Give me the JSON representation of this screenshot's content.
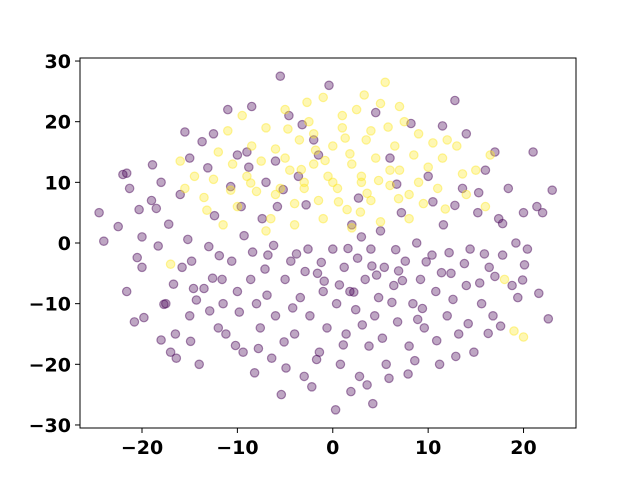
{
  "chart_data": {
    "type": "scatter",
    "title": "",
    "xlabel": "",
    "ylabel": "",
    "xlim": [
      -26.5,
      25.5
    ],
    "ylim": [
      -30.5,
      30.5
    ],
    "xticks": [
      "−20",
      "−10",
      "0",
      "10",
      "20"
    ],
    "xtick_values": [
      -20,
      -10,
      0,
      10,
      20
    ],
    "yticks": [
      "30",
      "20",
      "10",
      "0",
      "−10",
      "−20",
      "−30"
    ],
    "ytick_values": [
      30,
      20,
      10,
      0,
      -10,
      -20,
      -30
    ],
    "grid": false,
    "legend": "none",
    "marker_alpha": 0.35,
    "series": [
      {
        "color": "#440154",
        "points": [
          [
            -24.5,
            5
          ],
          [
            -24,
            0.3
          ],
          [
            -22,
            11.3
          ],
          [
            -21.6,
            11.5
          ],
          [
            -21.6,
            -8
          ],
          [
            -21.3,
            9
          ],
          [
            -20.8,
            -13
          ],
          [
            -20.3,
            5.5
          ],
          [
            -20,
            1
          ],
          [
            -20,
            -4
          ],
          [
            -19,
            7
          ],
          [
            -18.9,
            12.9
          ],
          [
            -18.5,
            5.7
          ],
          [
            -18,
            10
          ],
          [
            -18,
            -16
          ],
          [
            -17.5,
            -10
          ],
          [
            -17,
            -18
          ],
          [
            -16.5,
            -15
          ],
          [
            -16.4,
            -19
          ],
          [
            -16,
            8
          ],
          [
            -15.8,
            -4
          ],
          [
            -15.5,
            18.3
          ],
          [
            -15,
            -12
          ],
          [
            -14.8,
            -3
          ],
          [
            -14.6,
            -7.5
          ],
          [
            -14,
            -20
          ],
          [
            -13.7,
            16.7
          ],
          [
            -13.5,
            -7.5
          ],
          [
            -13,
            -0.6
          ],
          [
            -12.6,
            -5.8
          ],
          [
            -12.4,
            4.5
          ],
          [
            -12,
            -14
          ],
          [
            -11.6,
            -6
          ],
          [
            -11.5,
            -10
          ],
          [
            -11.2,
            -15
          ],
          [
            -11,
            22
          ],
          [
            -10.6,
            -3
          ],
          [
            -10,
            -8
          ],
          [
            -9.6,
            6
          ],
          [
            -9.4,
            -18
          ],
          [
            -9,
            15
          ],
          [
            -8.6,
            -6
          ],
          [
            -8.4,
            -1.5
          ],
          [
            -8,
            -10
          ],
          [
            -7.6,
            -14
          ],
          [
            -7.4,
            4
          ],
          [
            -7,
            10
          ],
          [
            -6.8,
            -2
          ],
          [
            -6.4,
            -19
          ],
          [
            -6,
            -12
          ],
          [
            -5.8,
            6
          ],
          [
            -5.5,
            27.5
          ],
          [
            -5.4,
            -25
          ],
          [
            -5,
            -6
          ],
          [
            -4.6,
            21
          ],
          [
            -4.4,
            -3
          ],
          [
            -4,
            -15
          ],
          [
            -3.6,
            11
          ],
          [
            -3.4,
            -9
          ],
          [
            -3,
            -22
          ],
          [
            -2.6,
            -1
          ],
          [
            -2.4,
            -12
          ],
          [
            -2,
            17
          ],
          [
            -1.6,
            -5
          ],
          [
            -1.4,
            -18
          ],
          [
            -1,
            -8
          ],
          [
            -0.6,
            -14
          ],
          [
            -0.4,
            26
          ],
          [
            0,
            -1
          ],
          [
            0.3,
            -27.5
          ],
          [
            0.4,
            -10
          ],
          [
            0.8,
            -20
          ],
          [
            1.2,
            -4
          ],
          [
            1.4,
            -15
          ],
          [
            1.8,
            -8
          ],
          [
            2,
            3
          ],
          [
            2.4,
            -11
          ],
          [
            2.8,
            -22
          ],
          [
            3,
            1
          ],
          [
            3.4,
            -6
          ],
          [
            3.8,
            -17
          ],
          [
            4,
            -1
          ],
          [
            4.2,
            -26.5
          ],
          [
            4.4,
            -12
          ],
          [
            4.8,
            -9
          ],
          [
            5,
            2
          ],
          [
            5.4,
            -4
          ],
          [
            5.6,
            -20
          ],
          [
            6,
            14
          ],
          [
            6.4,
            -7
          ],
          [
            6.8,
            -13
          ],
          [
            7.2,
            5
          ],
          [
            7.6,
            -3
          ],
          [
            8,
            -17
          ],
          [
            8.4,
            -10
          ],
          [
            8.8,
            0
          ],
          [
            9.2,
            -6
          ],
          [
            9.6,
            -14
          ],
          [
            10,
            11
          ],
          [
            10.4,
            -2
          ],
          [
            10.8,
            -8
          ],
          [
            11.2,
            -20
          ],
          [
            11.6,
            3
          ],
          [
            12,
            -12
          ],
          [
            12.4,
            -5
          ],
          [
            12.8,
            23.5
          ],
          [
            13.2,
            -15
          ],
          [
            13.6,
            9
          ],
          [
            14,
            -7
          ],
          [
            14.4,
            -1
          ],
          [
            14.8,
            -18
          ],
          [
            15.2,
            5
          ],
          [
            15.6,
            -10
          ],
          [
            16,
            12
          ],
          [
            16.4,
            -4
          ],
          [
            16.8,
            -12
          ],
          [
            17,
            -5.5
          ],
          [
            17.4,
            4
          ],
          [
            17.8,
            -2
          ],
          [
            18.4,
            9
          ],
          [
            18.8,
            -7
          ],
          [
            19.2,
            0
          ],
          [
            19.4,
            -9
          ],
          [
            20,
            5
          ],
          [
            20.4,
            -1
          ],
          [
            21,
            15
          ],
          [
            21.4,
            6
          ],
          [
            22,
            5
          ],
          [
            22.6,
            -12.5
          ],
          [
            23,
            8.7
          ],
          [
            -22.5,
            2.7
          ],
          [
            -19.8,
            -12.3
          ],
          [
            -17.2,
            3.1
          ],
          [
            -14.9,
            -16.2
          ],
          [
            -13.1,
            12.4
          ],
          [
            -10.7,
            9.3
          ],
          [
            -8.2,
            -21.4
          ],
          [
            -6.9,
            -8.6
          ],
          [
            -5.1,
            -16.3
          ],
          [
            -3.8,
            -1.8
          ],
          [
            -2.2,
            -23.7
          ],
          [
            -0.9,
            -6.3
          ],
          [
            1.1,
            -16.8
          ],
          [
            2.6,
            -2.5
          ],
          [
            3.6,
            -23.4
          ],
          [
            5.2,
            -15.7
          ],
          [
            6.6,
            -1.1
          ],
          [
            7.9,
            -21.6
          ],
          [
            9.4,
            -10.8
          ],
          [
            10.9,
            -16.1
          ],
          [
            12.6,
            -9.3
          ],
          [
            14.2,
            -13.3
          ],
          [
            15.9,
            -1.8
          ],
          [
            17.6,
            -13.7
          ],
          [
            19.9,
            -6.1
          ],
          [
            -18.3,
            -0.5
          ],
          [
            -16.7,
            -6.8
          ],
          [
            -12.9,
            -11.2
          ],
          [
            -9.8,
            -11.4
          ],
          [
            -7.1,
            -4.3
          ],
          [
            -4.2,
            -10.7
          ],
          [
            -1.2,
            -3.2
          ],
          [
            0.7,
            -6.9
          ],
          [
            2.2,
            -8.1
          ],
          [
            3.1,
            -13.5
          ],
          [
            4.6,
            -5.3
          ],
          [
            6.2,
            -9.8
          ],
          [
            7.3,
            -6.2
          ],
          [
            8.9,
            -12.6
          ],
          [
            11.4,
            -4.9
          ],
          [
            13.8,
            -3.4
          ],
          [
            15.4,
            -6.6
          ],
          [
            -20.5,
            -2.4
          ],
          [
            -15.2,
            0.6
          ],
          [
            -11.9,
            -2.1
          ],
          [
            -9.3,
            1.2
          ],
          [
            -6.2,
            -0.4
          ],
          [
            -2.9,
            -4.7
          ],
          [
            1.6,
            -0.9
          ],
          [
            4.1,
            -3.8
          ],
          [
            6.9,
            -4.6
          ],
          [
            9.8,
            -3.1
          ],
          [
            12.2,
            -1.6
          ],
          [
            -17.7,
            -10.1
          ],
          [
            -14.3,
            -9.4
          ],
          [
            -10.2,
            -16.9
          ],
          [
            -7.8,
            -17.4
          ],
          [
            -4.9,
            -20.6
          ],
          [
            -1.7,
            -19.2
          ],
          [
            1.9,
            -24.5
          ],
          [
            5.9,
            -22.3
          ],
          [
            8.6,
            -19.4
          ],
          [
            12.9,
            -18.7
          ],
          [
            16.3,
            -14.9
          ],
          [
            -8.5,
            22.5
          ],
          [
            -3.2,
            19.5
          ],
          [
            4.5,
            21.5
          ],
          [
            8.2,
            19.7
          ],
          [
            11.5,
            19.3
          ],
          [
            14,
            18
          ],
          [
            17,
            15
          ],
          [
            -12.5,
            18
          ],
          [
            -15,
            14
          ],
          [
            -10,
            14.5
          ],
          [
            -6,
            13.5
          ],
          [
            -1.5,
            14.5
          ],
          [
            -8.8,
            12.5
          ],
          [
            -5.2,
            8.8
          ],
          [
            -2.8,
            6.3
          ],
          [
            2.7,
            7.4
          ],
          [
            6.7,
            9.7
          ],
          [
            10.5,
            6.8
          ],
          [
            12.8,
            6.2
          ],
          [
            15.3,
            8.3
          ],
          [
            17.8,
            3.2
          ],
          [
            20.1,
            -3.6
          ],
          [
            21.6,
            -8.3
          ]
        ]
      },
      {
        "color": "#fde725",
        "points": [
          [
            -17,
            -3.5
          ],
          [
            -16,
            13.5
          ],
          [
            -15.5,
            9
          ],
          [
            -14.5,
            11
          ],
          [
            -13.5,
            7.5
          ],
          [
            -12.5,
            10.5
          ],
          [
            -12,
            15
          ],
          [
            -11.5,
            3
          ],
          [
            -11,
            18.5
          ],
          [
            -10.5,
            13
          ],
          [
            -10,
            6
          ],
          [
            -9.5,
            21
          ],
          [
            -9,
            11
          ],
          [
            -8.5,
            16
          ],
          [
            -8,
            8.5
          ],
          [
            -7.5,
            13.5
          ],
          [
            -7,
            19
          ],
          [
            -6.5,
            4
          ],
          [
            -6,
            15.5
          ],
          [
            -5.5,
            9
          ],
          [
            -5,
            22
          ],
          [
            -4.5,
            12
          ],
          [
            -4,
            6.5
          ],
          [
            -3.5,
            17
          ],
          [
            -3,
            10
          ],
          [
            -2.5,
            20
          ],
          [
            -2,
            13
          ],
          [
            -1.5,
            7
          ],
          [
            -1,
            24
          ],
          [
            -0.5,
            11
          ],
          [
            0,
            16
          ],
          [
            0.5,
            9
          ],
          [
            1,
            19
          ],
          [
            1.5,
            5.5
          ],
          [
            2,
            13
          ],
          [
            2.5,
            22
          ],
          [
            3,
            10
          ],
          [
            3.5,
            17
          ],
          [
            4,
            7
          ],
          [
            4.5,
            14
          ],
          [
            5,
            23
          ],
          [
            5.5,
            26.5
          ],
          [
            6,
            9.5
          ],
          [
            6.5,
            16
          ],
          [
            7,
            12
          ],
          [
            7.5,
            20
          ],
          [
            8,
            8
          ],
          [
            8.5,
            14.5
          ],
          [
            9,
            18
          ],
          [
            9.5,
            6.5
          ],
          [
            10,
            12.5
          ],
          [
            10.5,
            16.5
          ],
          [
            11,
            9
          ],
          [
            11.5,
            14
          ],
          [
            12,
            17
          ],
          [
            13,
            16
          ],
          [
            14,
            8
          ],
          [
            15,
            12
          ],
          [
            16,
            6
          ],
          [
            16.5,
            14.5
          ],
          [
            18,
            -6
          ],
          [
            19,
            -14.5
          ],
          [
            20,
            -15.5
          ],
          [
            -7,
            2
          ],
          [
            -4,
            3
          ],
          [
            -1,
            4
          ],
          [
            2,
            2.5
          ],
          [
            5,
            3.5
          ],
          [
            8,
            4
          ],
          [
            -6,
            8
          ],
          [
            -3,
            9
          ],
          [
            0,
            10
          ],
          [
            3,
            11
          ],
          [
            6,
            12
          ],
          [
            9,
            10
          ],
          [
            -2,
            18
          ],
          [
            1,
            21
          ],
          [
            4,
            18.5
          ],
          [
            7,
            22.5
          ],
          [
            -5,
            14
          ],
          [
            -1.8,
            15.3
          ],
          [
            1.8,
            14.7
          ],
          [
            3.6,
            8.2
          ],
          [
            -3.3,
            12.1
          ],
          [
            0.6,
            6.8
          ],
          [
            2.9,
            5.1
          ],
          [
            -8.6,
            9.9
          ],
          [
            4.8,
            10.3
          ],
          [
            6.9,
            7.3
          ],
          [
            -0.8,
            13.6
          ],
          [
            1.3,
            17.3
          ],
          [
            -4.7,
            18.8
          ],
          [
            -10.7,
            8.7
          ],
          [
            -13.2,
            5.4
          ],
          [
            11.8,
            5.6
          ],
          [
            13.6,
            11.4
          ],
          [
            -2.7,
            23.2
          ],
          [
            3.3,
            24.4
          ],
          [
            5.8,
            19.1
          ]
        ]
      }
    ]
  }
}
